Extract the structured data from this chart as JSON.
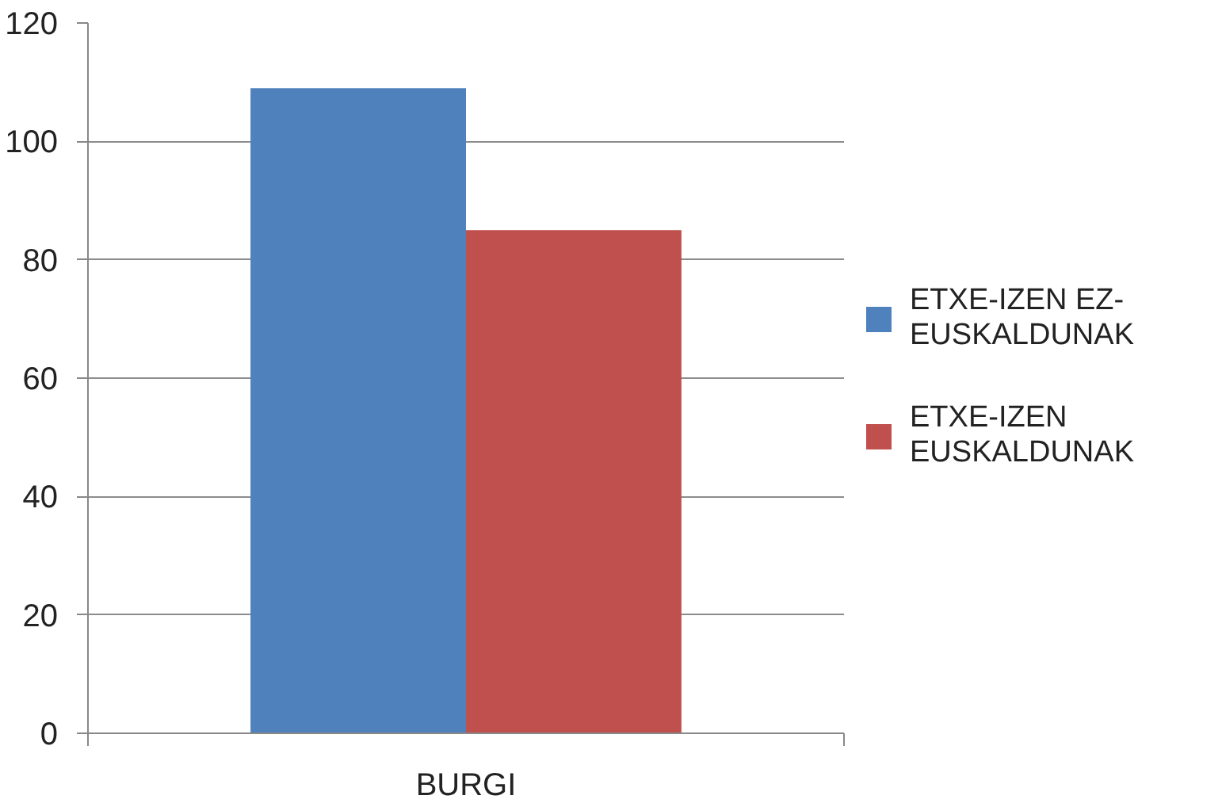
{
  "chart_data": {
    "type": "bar",
    "categories": [
      "BURGI"
    ],
    "series": [
      {
        "name": "ETXE-IZEN EZ-EUSKALDUNAK",
        "color": "#4f81bd",
        "values": [
          109
        ]
      },
      {
        "name": "ETXE-IZEN EUSKALDUNAK",
        "color": "#c0504d",
        "values": [
          85
        ]
      }
    ],
    "ylim": [
      0,
      120
    ],
    "yticks": [
      0,
      20,
      40,
      60,
      80,
      100,
      120
    ],
    "grid": "y",
    "legend": "right"
  }
}
